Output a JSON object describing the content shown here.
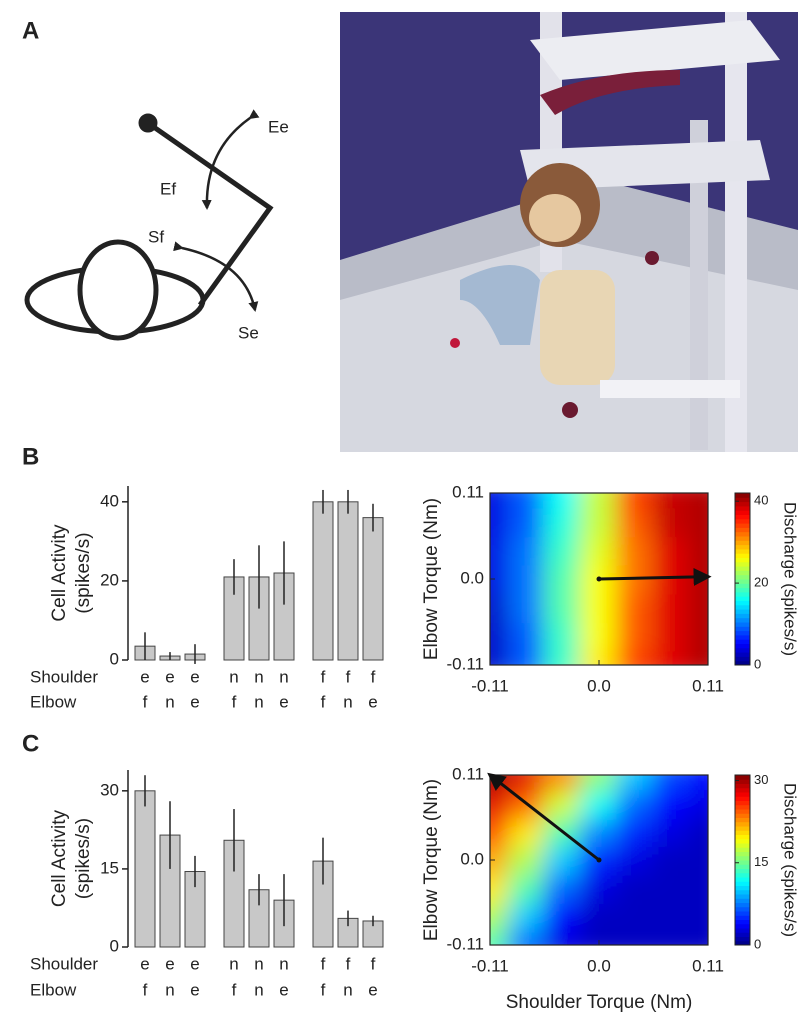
{
  "panel_labels": [
    "A",
    "B",
    "C"
  ],
  "arm_diagram": {
    "labels": [
      "Ee",
      "Ef",
      "Sf",
      "Se"
    ]
  },
  "chart_data": [
    {
      "type": "bar",
      "y_label": [
        "Cell Activity",
        "(spikes/s)"
      ],
      "category_rows": [
        {
          "name": "Shoulder",
          "labels": [
            "e",
            "e",
            "e",
            "n",
            "n",
            "n",
            "f",
            "f",
            "f"
          ]
        },
        {
          "name": "Elbow",
          "labels": [
            "f",
            "n",
            "e",
            "f",
            "n",
            "e",
            "f",
            "n",
            "e"
          ]
        }
      ],
      "values": [
        3.5,
        1,
        1.5,
        21,
        21,
        22,
        40,
        40,
        36
      ],
      "errors": [
        3.5,
        1,
        2.5,
        4.5,
        8,
        8,
        3,
        3,
        3.5
      ],
      "color": "#c8c8c8",
      "ylim": [
        0,
        44
      ],
      "yticks": [
        0,
        20,
        40
      ]
    },
    {
      "type": "heatmap",
      "y_label": "Elbow Torque (Nm)",
      "x": [
        -0.11,
        -0.073,
        -0.037,
        0,
        0.037,
        0.073,
        0.11
      ],
      "y": [
        -0.11,
        -0.073,
        -0.037,
        0,
        0.037,
        0.073,
        0.11
      ],
      "z": [
        [
          3,
          9,
          18,
          27,
          34,
          38,
          40
        ],
        [
          3,
          9,
          18,
          26,
          33,
          38,
          40
        ],
        [
          3,
          10,
          19,
          26,
          33,
          38,
          40
        ],
        [
          4,
          10,
          19,
          26,
          32,
          38,
          40
        ],
        [
          4,
          10,
          18,
          25,
          32,
          38,
          40
        ],
        [
          4,
          9,
          17,
          24,
          33,
          39,
          40
        ],
        [
          4,
          9,
          16,
          24,
          34,
          39,
          40
        ]
      ],
      "xlim": [
        -0.11,
        0.11
      ],
      "ylim": [
        -0.11,
        0.11
      ],
      "xticks": [
        -0.11,
        {
          "value": 0,
          "label": "0.0"
        },
        0.11
      ],
      "yticks": [
        -0.11,
        {
          "value": 0,
          "label": "0.0"
        },
        0.11
      ],
      "colorbar": {
        "label": "Discharge (spikes/s)",
        "lim": [
          0,
          42
        ],
        "ticks": [
          0,
          20,
          40
        ]
      },
      "arrow": {
        "from": [
          0,
          0
        ],
        "to": [
          0.11,
          0.003
        ]
      }
    },
    {
      "type": "bar",
      "y_label": [
        "Cell Activity",
        "(spikes/s)"
      ],
      "category_rows": [
        {
          "name": "Shoulder",
          "labels": [
            "e",
            "e",
            "e",
            "n",
            "n",
            "n",
            "f",
            "f",
            "f"
          ]
        },
        {
          "name": "Elbow",
          "labels": [
            "f",
            "n",
            "e",
            "f",
            "n",
            "e",
            "f",
            "n",
            "e"
          ]
        }
      ],
      "values": [
        30,
        21.5,
        14.5,
        20.5,
        11,
        9,
        16.5,
        5.5,
        5
      ],
      "errors": [
        3,
        6.5,
        3,
        6,
        3,
        5,
        4.5,
        1.5,
        1
      ],
      "color": "#c8c8c8",
      "ylim": [
        0,
        34
      ],
      "yticks": [
        0,
        15,
        30
      ]
    },
    {
      "type": "heatmap",
      "y_label": "Elbow Torque (Nm)",
      "x_label": "Shoulder Torque (Nm)",
      "x": [
        -0.11,
        -0.073,
        -0.037,
        0,
        0.037,
        0.073,
        0.11
      ],
      "y": [
        -0.11,
        -0.073,
        -0.037,
        0,
        0.037,
        0.073,
        0.11
      ],
      "z": [
        [
          14,
          7,
          3,
          2,
          2,
          2,
          2
        ],
        [
          17,
          10,
          4,
          2,
          2,
          2,
          2
        ],
        [
          20,
          14,
          7,
          3,
          2,
          2,
          2
        ],
        [
          22,
          17,
          10,
          5,
          3,
          2,
          2
        ],
        [
          25,
          20,
          14,
          8,
          5,
          3,
          2
        ],
        [
          28,
          24,
          18,
          12,
          7,
          4,
          3
        ],
        [
          30,
          28,
          23,
          16,
          10,
          6,
          4
        ]
      ],
      "xlim": [
        -0.11,
        0.11
      ],
      "ylim": [
        -0.11,
        0.11
      ],
      "xticks": [
        -0.11,
        {
          "value": 0,
          "label": "0.0"
        },
        0.11
      ],
      "yticks": [
        -0.11,
        {
          "value": 0,
          "label": "0.0"
        },
        0.11
      ],
      "colorbar": {
        "label": "Discharge (spikes/s)",
        "lim": [
          0,
          31
        ],
        "ticks": [
          0,
          15,
          30
        ]
      },
      "arrow": {
        "from": [
          0,
          0
        ],
        "to": [
          -0.11,
          0.11
        ]
      }
    }
  ]
}
